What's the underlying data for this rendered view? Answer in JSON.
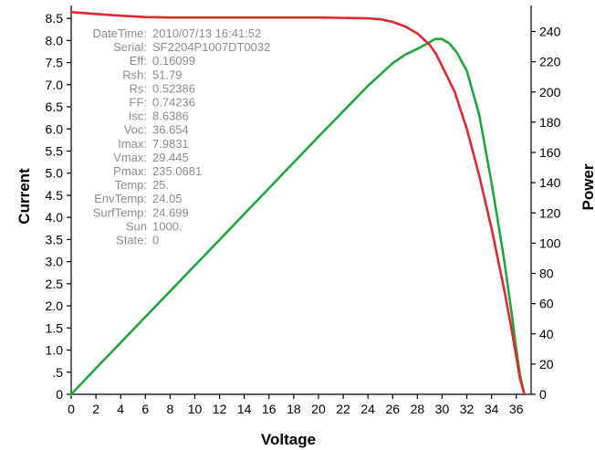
{
  "chart_data": {
    "type": "line",
    "xlabel": "Voltage",
    "ylabel_left": "Current",
    "ylabel_right": "Power",
    "xlim": [
      0,
      37.2
    ],
    "ylim_left": [
      0,
      8.75
    ],
    "ylim_right": [
      0,
      256
    ],
    "x_ticks": [
      "0",
      "2",
      "4",
      "6",
      "8",
      "10",
      "12",
      "14",
      "16",
      "18",
      "20",
      "22",
      "24",
      "26",
      "28",
      "30",
      "32",
      "34",
      "36"
    ],
    "y_left_ticks": [
      "0",
      ".5",
      "1.0",
      "1.5",
      "2.0",
      "2.5",
      "3.0",
      "3.5",
      "4.0",
      "4.5",
      "5.0",
      "5.5",
      "6.0",
      "6.5",
      "7.0",
      "7.5",
      "8.0",
      "8.5"
    ],
    "y_right_ticks": [
      "0",
      "20",
      "40",
      "60",
      "80",
      "100",
      "120",
      "140",
      "160",
      "180",
      "200",
      "220",
      "240"
    ],
    "grid": false,
    "series": [
      {
        "name": "Current",
        "axis": "left",
        "color": "#e0282e",
        "points": [
          [
            0,
            8.64
          ],
          [
            2,
            8.6
          ],
          [
            4,
            8.56
          ],
          [
            6,
            8.53
          ],
          [
            8,
            8.52
          ],
          [
            10,
            8.52
          ],
          [
            12,
            8.52
          ],
          [
            14,
            8.52
          ],
          [
            16,
            8.52
          ],
          [
            18,
            8.52
          ],
          [
            20,
            8.52
          ],
          [
            22,
            8.51
          ],
          [
            24,
            8.5
          ],
          [
            25,
            8.48
          ],
          [
            26,
            8.42
          ],
          [
            27,
            8.32
          ],
          [
            28,
            8.16
          ],
          [
            29,
            7.9
          ],
          [
            29.5,
            7.7
          ],
          [
            30,
            7.42
          ],
          [
            31,
            6.85
          ],
          [
            32,
            6.0
          ],
          [
            33,
            4.95
          ],
          [
            34,
            3.75
          ],
          [
            35,
            2.4
          ],
          [
            35.6,
            1.5
          ],
          [
            36,
            0.85
          ],
          [
            36.3,
            0.35
          ],
          [
            36.654,
            0
          ]
        ]
      },
      {
        "name": "Power",
        "axis": "right",
        "color": "#1ea83c",
        "points": [
          [
            0,
            0
          ],
          [
            2,
            17.2
          ],
          [
            4,
            34.2
          ],
          [
            6,
            51.2
          ],
          [
            8,
            68.2
          ],
          [
            10,
            85.2
          ],
          [
            12,
            102.2
          ],
          [
            14,
            119.3
          ],
          [
            16,
            136.3
          ],
          [
            18,
            153.4
          ],
          [
            20,
            170.4
          ],
          [
            22,
            187.2
          ],
          [
            24,
            204
          ],
          [
            26,
            219
          ],
          [
            27,
            224.6
          ],
          [
            28,
            228.5
          ],
          [
            28.8,
            232
          ],
          [
            29.445,
            235.07
          ],
          [
            30,
            235
          ],
          [
            30.6,
            232
          ],
          [
            31.2,
            226
          ],
          [
            32,
            214
          ],
          [
            33,
            185
          ],
          [
            34,
            140
          ],
          [
            35,
            90
          ],
          [
            35.6,
            55
          ],
          [
            36,
            30
          ],
          [
            36.3,
            13
          ],
          [
            36.654,
            0
          ]
        ]
      }
    ],
    "annotations": [
      {
        "key": "DateTime:",
        "value": "2010/07/13 16:41:52"
      },
      {
        "key": "Serial:",
        "value": "SF2204P1007DT0032"
      },
      {
        "key": "Eff:",
        "value": "0.16099"
      },
      {
        "key": "Rsh:",
        "value": "51.79"
      },
      {
        "key": "Rs:",
        "value": "0.52386"
      },
      {
        "key": "FF:",
        "value": "0.74236"
      },
      {
        "key": "Isc:",
        "value": "8.6386"
      },
      {
        "key": "Voc:",
        "value": "36.654"
      },
      {
        "key": "Imax:",
        "value": "7.9831"
      },
      {
        "key": "Vmax:",
        "value": "29.445"
      },
      {
        "key": "Pmax:",
        "value": "235.0681"
      },
      {
        "key": "Temp:",
        "value": "25."
      },
      {
        "key": "EnvTemp:",
        "value": "24.05"
      },
      {
        "key": "SurfTemp:",
        "value": "24.699"
      },
      {
        "key": "Sun",
        "value": "1000."
      },
      {
        "key": "State:",
        "value": "0"
      }
    ]
  }
}
